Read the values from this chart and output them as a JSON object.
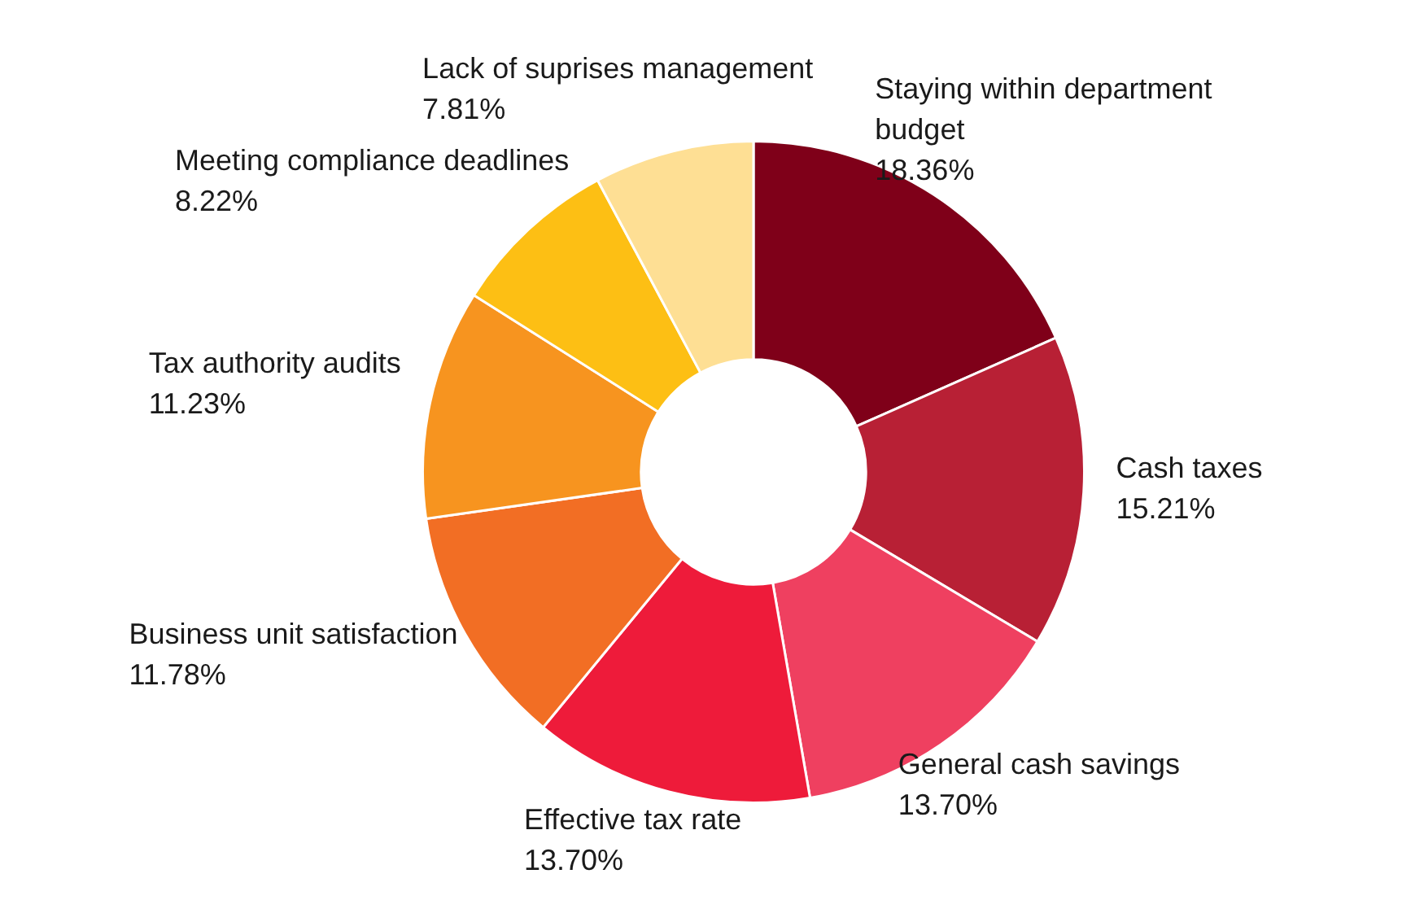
{
  "chart_data": {
    "type": "donut",
    "categories": [
      "Staying within department budget",
      "Cash taxes",
      "General cash savings",
      "Effective tax rate",
      "Business unit satisfaction",
      "Tax authority audits",
      "Meeting compliance deadlines",
      "Lack of suprises management"
    ],
    "values": [
      18.36,
      15.21,
      13.7,
      13.7,
      11.78,
      11.23,
      8.22,
      7.81
    ],
    "value_labels": [
      "18.36%",
      "15.21%",
      "13.70%",
      "13.70%",
      "11.78%",
      "11.23%",
      "8.22%",
      "7.81%"
    ],
    "colors": [
      "#7f0019",
      "#b82035",
      "#ef4060",
      "#ee1b3a",
      "#f26e24",
      "#f7941f",
      "#fdbf14",
      "#fedf94"
    ],
    "legend": false
  }
}
